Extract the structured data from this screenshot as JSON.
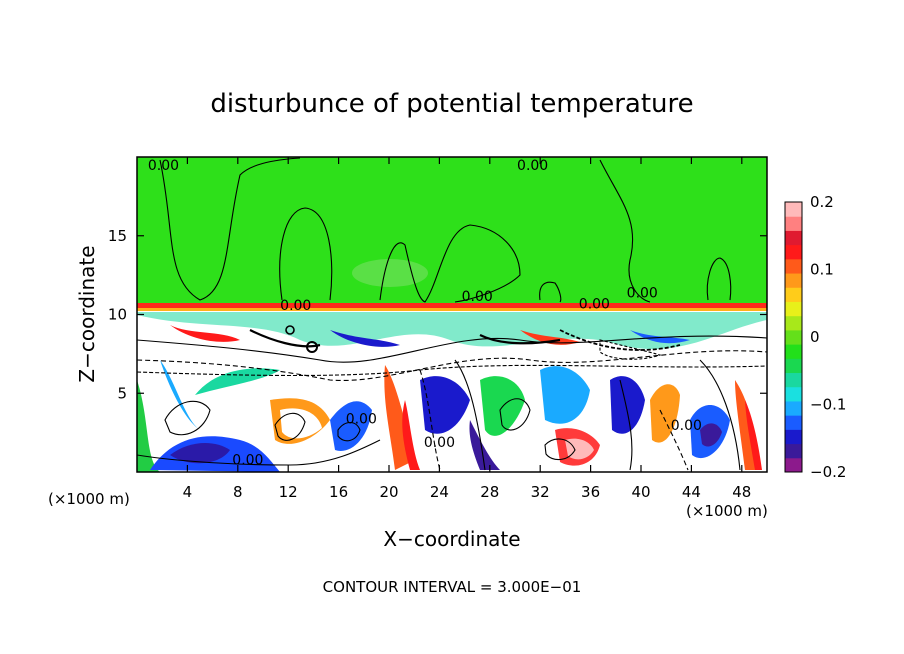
{
  "chart_data": {
    "type": "heatmap",
    "title": "disturbunce of potential temperature",
    "xlabel": "X−coordinate",
    "ylabel": "Z−coordinate",
    "x_unit_left": "(×1000 m)",
    "x_unit_right": "(×1000 m)",
    "footer": "CONTOUR INTERVAL = 3.000E−01",
    "xlim": [
      0,
      50
    ],
    "ylim": [
      0,
      20
    ],
    "x_ticks": [
      4,
      8,
      12,
      16,
      20,
      24,
      28,
      32,
      36,
      40,
      44,
      48
    ],
    "x_tick_labels": [
      "4",
      "8",
      "12",
      "16",
      "20",
      "24",
      "28",
      "32",
      "36",
      "40",
      "44",
      "48"
    ],
    "y_ticks": [
      5,
      10,
      15
    ],
    "y_tick_labels": [
      "5",
      "10",
      "15"
    ],
    "colorbar": {
      "range": [
        -0.2,
        0.2
      ],
      "ticks": [
        0.2,
        0.1,
        0,
        -0.1,
        -0.2
      ],
      "tick_labels": [
        "0.2",
        "0.1",
        "0",
        "−0.1",
        "−0.2"
      ],
      "colors": [
        "#8c1a8c",
        "#3a1a9a",
        "#1a1acc",
        "#1a5cff",
        "#1aaaff",
        "#1ae0e0",
        "#1ad8a0",
        "#1ad850",
        "#22e01a",
        "#64e01a",
        "#a8e81a",
        "#e8f01a",
        "#ffcc1a",
        "#ff991a",
        "#ff5a1a",
        "#ff1a1a",
        "#e01a30",
        "#ff8080",
        "#ffbaba"
      ]
    },
    "contour_labels": [
      {
        "text": "0.00",
        "x": 2.1,
        "z": 19.3
      },
      {
        "text": "0.00",
        "x": 31.4,
        "z": 19.3
      },
      {
        "text": "0.00",
        "x": 27.0,
        "z": 11.0
      },
      {
        "text": "0.00",
        "x": 12.6,
        "z": 10.4
      },
      {
        "text": "0.00",
        "x": 36.3,
        "z": 10.5
      },
      {
        "text": "0.00",
        "x": 40.1,
        "z": 11.2
      },
      {
        "text": "0.00",
        "x": 17.8,
        "z": 3.2
      },
      {
        "text": "0.00",
        "x": 24.0,
        "z": 1.7
      },
      {
        "text": "0.00",
        "x": 43.6,
        "z": 2.8
      },
      {
        "text": "0.00",
        "x": 8.8,
        "z": 0.6
      }
    ],
    "grid": false
  }
}
